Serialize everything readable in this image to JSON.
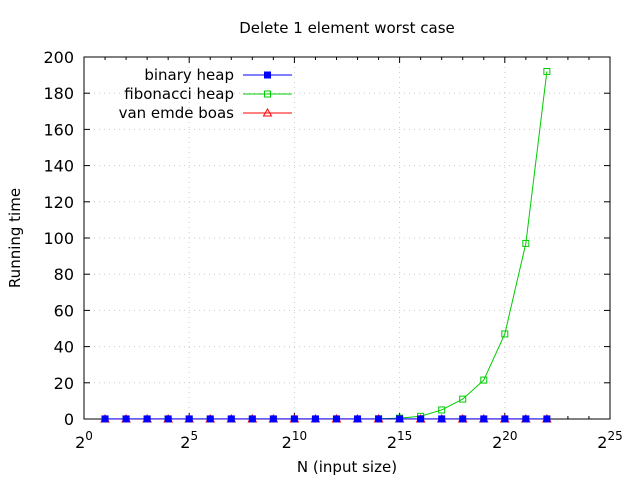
{
  "chart_data": {
    "type": "line",
    "title": "Delete 1 element worst case",
    "xlabel": "N (input size)",
    "ylabel": "Running time",
    "x_scale": "log2",
    "xlim": [
      1,
      33554432
    ],
    "ylim": [
      0,
      200
    ],
    "x_ticks": [
      {
        "base": "2",
        "exp": "0"
      },
      {
        "base": "2",
        "exp": "5"
      },
      {
        "base": "2",
        "exp": "10"
      },
      {
        "base": "2",
        "exp": "15"
      },
      {
        "base": "2",
        "exp": "20"
      },
      {
        "base": "2",
        "exp": "25"
      }
    ],
    "y_ticks": [
      "0",
      "20",
      "40",
      "60",
      "80",
      "100",
      "120",
      "140",
      "160",
      "180",
      "200"
    ],
    "grid": true,
    "legend_position": "top-left",
    "x": [
      2,
      4,
      8,
      16,
      32,
      64,
      128,
      256,
      512,
      1024,
      2048,
      4096,
      8192,
      16384,
      32768,
      65536,
      131072,
      262144,
      524288,
      1048576,
      2097152,
      4194304
    ],
    "series": [
      {
        "name": "binary heap",
        "color": "#0000ff",
        "marker": "filled-square",
        "values": [
          0.05,
          0.05,
          0.05,
          0.05,
          0.05,
          0.05,
          0.05,
          0.05,
          0.05,
          0.05,
          0.05,
          0.05,
          0.05,
          0.05,
          0.05,
          0.05,
          0.05,
          0.05,
          0.05,
          0.05,
          0.05,
          0.05
        ]
      },
      {
        "name": "fibonacci heap",
        "color": "#00cc00",
        "marker": "open-square",
        "values": [
          0,
          0,
          0,
          0,
          0,
          0,
          0,
          0,
          0,
          0,
          0,
          0,
          0,
          0.1,
          0.5,
          1.5,
          5,
          11,
          21.5,
          47,
          97,
          192
        ]
      },
      {
        "name": "van emde boas",
        "color": "#ff0000",
        "marker": "open-triangle",
        "values": [
          0,
          0,
          0,
          0,
          0,
          0,
          0,
          0,
          0,
          0,
          0,
          0,
          0,
          0,
          0,
          0,
          0,
          0,
          0,
          0,
          0,
          0
        ]
      }
    ]
  }
}
